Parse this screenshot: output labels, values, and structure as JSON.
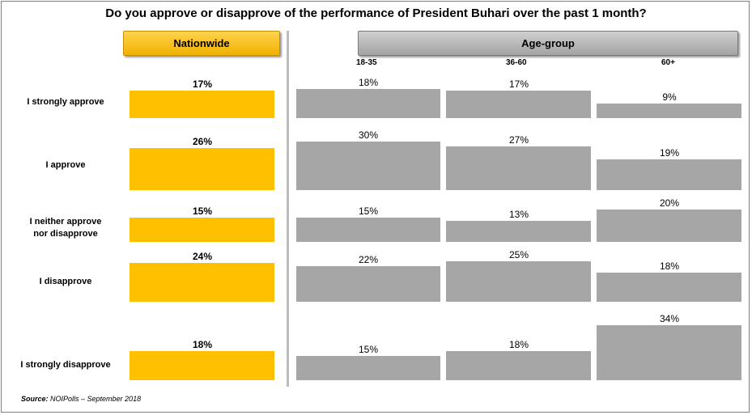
{
  "title": "Do you approve or disapprove of the performance of President Buhari over the past 1 month?",
  "headers": {
    "nationwide": "Nationwide",
    "age_group": "Age-group"
  },
  "age_labels": [
    "18-35",
    "36-60",
    "60+"
  ],
  "source": {
    "label": "Source:",
    "text": " NOIPolls – September 2018"
  },
  "colors": {
    "nationwide": "#FFC000",
    "age": "#A6A6A6"
  },
  "chart_data": {
    "type": "bar",
    "categories": [
      "I strongly approve",
      "I approve",
      "I neither approve nor disapprove",
      "I disapprove",
      "I strongly disapprove"
    ],
    "category_lines": [
      [
        "I strongly approve"
      ],
      [
        "I approve"
      ],
      [
        "I neither approve",
        "nor disapprove"
      ],
      [
        "I disapprove"
      ],
      [
        "I strongly disapprove"
      ]
    ],
    "series": [
      {
        "name": "Nationwide",
        "values": [
          17,
          26,
          15,
          24,
          18
        ]
      },
      {
        "name": "18-35",
        "values": [
          18,
          30,
          15,
          22,
          15
        ]
      },
      {
        "name": "36-60",
        "values": [
          17,
          27,
          13,
          25,
          18
        ]
      },
      {
        "name": "60+",
        "values": [
          9,
          19,
          20,
          18,
          34
        ]
      }
    ],
    "unit": "%"
  }
}
